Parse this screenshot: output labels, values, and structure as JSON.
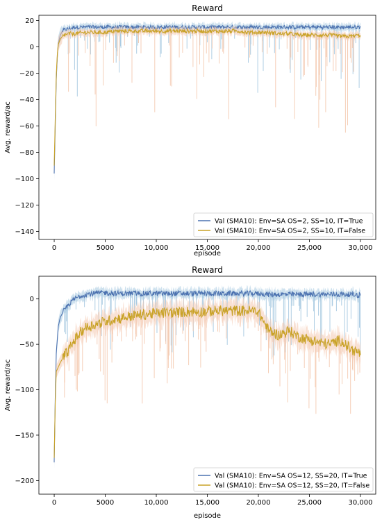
{
  "chart_data": [
    {
      "type": "line",
      "title": "Reward",
      "xlabel": "episode",
      "ylabel": "Avg. reward/ac",
      "xlim": [
        -1500,
        31500
      ],
      "ylim": [
        -146,
        24
      ],
      "xticks": [
        0,
        5000,
        10000,
        15000,
        20000,
        25000,
        30000
      ],
      "xtick_labels": [
        "0",
        "5000",
        "10,000",
        "15,000",
        "20,000",
        "25,000",
        "30,000"
      ],
      "yticks": [
        20,
        0,
        -20,
        -40,
        -60,
        -80,
        -100,
        -120,
        -140
      ],
      "ytick_labels": [
        "20",
        "0",
        "−20",
        "−40",
        "−60",
        "−80",
        "−100",
        "−120",
        "−140"
      ],
      "legend_position": "bottom-right",
      "series": [
        {
          "name": "Val (SMA10): Env=SA OS=2, SS=10, IT=True",
          "color": "#4c72b0",
          "band_color": "#a6c8e0",
          "x": [
            0,
            100,
            200,
            300,
            400,
            600,
            800,
            1000,
            1500,
            2000,
            3000,
            4000,
            5000,
            6000,
            7000,
            8000,
            9000,
            10000,
            11000,
            12000,
            13000,
            14000,
            15000,
            16000,
            17000,
            18000,
            19000,
            20000,
            21000,
            22000,
            23000,
            24000,
            25000,
            26000,
            27000,
            28000,
            29000,
            30000
          ],
          "y": [
            -96,
            -60,
            -25,
            -8,
            3,
            9,
            12,
            13,
            14,
            15,
            15,
            15,
            15,
            15,
            15,
            15,
            15,
            15,
            15,
            15,
            15,
            15,
            15,
            15,
            15,
            15,
            15,
            15,
            15,
            15,
            15,
            15,
            15,
            15,
            15,
            15,
            15,
            15
          ]
        },
        {
          "name": "Val (SMA10): Env=SA OS=2, SS=10, IT=False",
          "color": "#c9a227",
          "band_color": "#f4c9b0",
          "x": [
            0,
            100,
            200,
            300,
            400,
            600,
            800,
            1000,
            1500,
            2000,
            3000,
            4000,
            5000,
            6000,
            7000,
            8000,
            9000,
            10000,
            11000,
            12000,
            13000,
            14000,
            15000,
            16000,
            17000,
            18000,
            19000,
            20000,
            21000,
            22000,
            23000,
            24000,
            25000,
            26000,
            27000,
            28000,
            29000,
            30000
          ],
          "y": [
            -90,
            -55,
            -22,
            -6,
            2,
            6,
            8,
            9,
            10,
            10,
            11,
            11,
            11,
            12,
            12,
            12,
            12,
            12,
            12,
            12,
            12,
            12,
            12,
            12,
            12,
            12,
            11,
            11,
            11,
            10,
            10,
            9,
            9,
            9,
            9,
            8,
            8,
            9
          ]
        }
      ]
    },
    {
      "type": "line",
      "title": "Reward",
      "xlabel": "episode",
      "ylabel": "Avg. reward/ac",
      "xlim": [
        -1500,
        31500
      ],
      "ylim": [
        -215,
        25
      ],
      "xticks": [
        0,
        5000,
        10000,
        15000,
        20000,
        25000,
        30000
      ],
      "xtick_labels": [
        "0",
        "5000",
        "10,000",
        "15,000",
        "20,000",
        "25,000",
        "30,000"
      ],
      "yticks": [
        0,
        -50,
        -100,
        -150,
        -200
      ],
      "ytick_labels": [
        "0",
        "−50",
        "−100",
        "−150",
        "−200"
      ],
      "legend_position": "bottom-right",
      "series": [
        {
          "name": "Val (SMA10): Env=SA OS=12, SS=20, IT=True",
          "color": "#4c72b0",
          "band_color": "#a6c8e0",
          "x": [
            0,
            100,
            200,
            400,
            600,
            1000,
            1500,
            2000,
            2500,
            3000,
            4000,
            5000,
            6000,
            7000,
            8000,
            9000,
            10000,
            11000,
            12000,
            13000,
            14000,
            15000,
            16000,
            17000,
            18000,
            19000,
            20000,
            21000,
            22000,
            23000,
            24000,
            25000,
            26000,
            27000,
            28000,
            29000,
            30000
          ],
          "y": [
            -180,
            -110,
            -60,
            -30,
            -20,
            -12,
            -5,
            0,
            3,
            5,
            6,
            7,
            6,
            6,
            6,
            6,
            6,
            6,
            6,
            6,
            6,
            6,
            6,
            6,
            6,
            6,
            6,
            5,
            5,
            5,
            5,
            5,
            5,
            5,
            5,
            5,
            4
          ]
        },
        {
          "name": "Val (SMA10): Env=SA OS=12, SS=20, IT=False",
          "color": "#c9a227",
          "band_color": "#f4c9b0",
          "x": [
            0,
            100,
            200,
            400,
            600,
            1000,
            1500,
            2000,
            2500,
            3000,
            4000,
            5000,
            6000,
            7000,
            8000,
            9000,
            10000,
            11000,
            12000,
            13000,
            14000,
            15000,
            16000,
            17000,
            18000,
            19000,
            20000,
            21000,
            22000,
            23000,
            24000,
            25000,
            26000,
            27000,
            28000,
            29000,
            30000
          ],
          "y": [
            -175,
            -115,
            -80,
            -75,
            -70,
            -62,
            -55,
            -45,
            -38,
            -32,
            -28,
            -25,
            -22,
            -20,
            -18,
            -17,
            -16,
            -15,
            -15,
            -14,
            -14,
            -14,
            -13,
            -13,
            -13,
            -13,
            -14,
            -35,
            -40,
            -35,
            -42,
            -45,
            -48,
            -50,
            -45,
            -55,
            -60
          ]
        }
      ]
    }
  ]
}
